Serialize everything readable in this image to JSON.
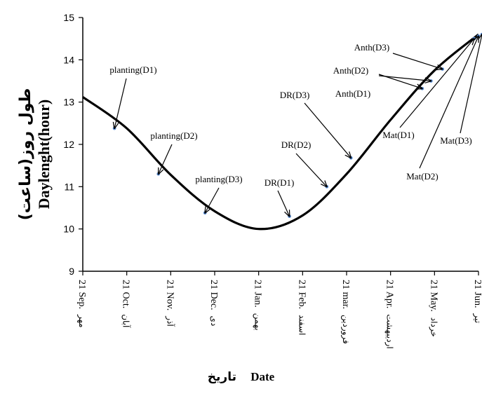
{
  "chart_data": {
    "type": "line",
    "ylabel_fa": "طول روز(ساعت)",
    "ylabel_en": "Daylenght(hour)",
    "xlabel_en": "Date",
    "xlabel_fa": "تاريخ",
    "ylim": [
      9,
      15
    ],
    "yticks": [
      9,
      10,
      11,
      12,
      13,
      14,
      15
    ],
    "grid": false,
    "x_categories": [
      {
        "en": "21 Sep.",
        "fa": "مهر"
      },
      {
        "en": "21 Oct.",
        "fa": "آبان"
      },
      {
        "en": "21 Nov.",
        "fa": "آذر"
      },
      {
        "en": "21 Dec.",
        "fa": "دی"
      },
      {
        "en": "21 Jan.",
        "fa": "بهمن"
      },
      {
        "en": "21 Feb.",
        "fa": "اسفند"
      },
      {
        "en": "21 mar.",
        "fa": "فروردین"
      },
      {
        "en": "21 Apr.",
        "fa": "اردیبهشت"
      },
      {
        "en": "21 May.",
        "fa": "خرداد"
      },
      {
        "en": "21 Jun.",
        "fa": "تیر"
      }
    ],
    "x": [
      0,
      1,
      2,
      3,
      4,
      5,
      6,
      7,
      8,
      9
    ],
    "series": [
      {
        "values": [
          13.12,
          12.38,
          11.28,
          10.42,
          10.0,
          10.32,
          11.3,
          12.58,
          13.75,
          14.6
        ]
      }
    ],
    "annotations": [
      {
        "label": "planting(D1)",
        "x": 0.72,
        "y": 12.38
      },
      {
        "label": "planting(D2)",
        "x": 1.72,
        "y": 11.3
      },
      {
        "label": "planting(D3)",
        "x": 2.78,
        "y": 10.38
      },
      {
        "label": "DR(D1)",
        "x": 4.7,
        "y": 10.3
      },
      {
        "label": "DR(D2)",
        "x": 5.55,
        "y": 11.0
      },
      {
        "label": "DR(D3)",
        "x": 6.1,
        "y": 11.68
      },
      {
        "label": "Anth(D1)",
        "x": 7.72,
        "y": 13.32
      },
      {
        "label": "Anth(D2)",
        "x": 7.92,
        "y": 13.5
      },
      {
        "label": "Anth(D3)",
        "x": 8.18,
        "y": 13.78
      },
      {
        "label": "Mat(D1)",
        "x": 8.9,
        "y": 14.5
      },
      {
        "label": "Mat(D2)",
        "x": 9.0,
        "y": 14.56
      },
      {
        "label": "Mat(D3)",
        "x": 9.08,
        "y": 14.6
      }
    ]
  }
}
